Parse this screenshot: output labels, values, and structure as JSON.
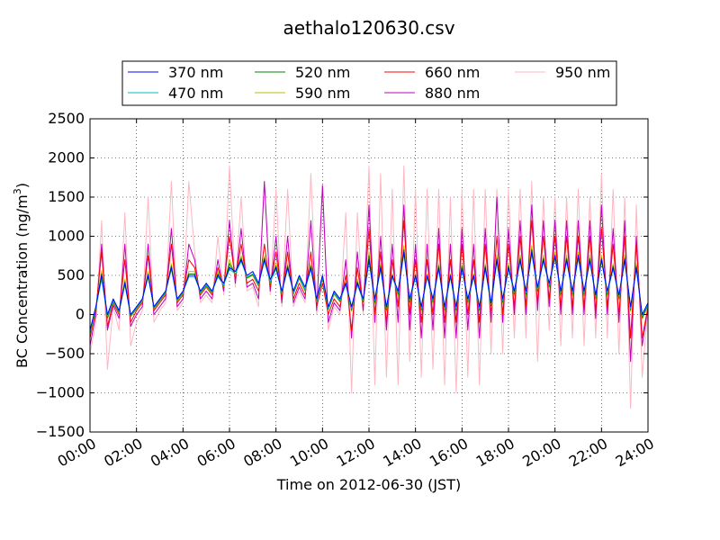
{
  "chart_data": {
    "type": "line",
    "title": "aethalo120630.csv",
    "xlabel": "Time on 2012-06-30 (JST)",
    "ylabel": "BC Concentration (ng/m",
    "ylabel_sup": "3",
    "ylabel_close": ")",
    "xlim": [
      0,
      24
    ],
    "ylim": [
      -1500,
      2500
    ],
    "x_ticks": [
      0,
      2,
      4,
      6,
      8,
      10,
      12,
      14,
      16,
      18,
      20,
      22,
      24
    ],
    "x_tick_labels": [
      "00:00",
      "02:00",
      "04:00",
      "06:00",
      "08:00",
      "10:00",
      "12:00",
      "14:00",
      "16:00",
      "18:00",
      "20:00",
      "22:00",
      "24:00"
    ],
    "y_ticks": [
      -1500,
      -1000,
      -500,
      0,
      500,
      1000,
      1500,
      2000,
      2500
    ],
    "y_tick_labels": [
      "−1500",
      "−1000",
      "−500",
      "0",
      "500",
      "1000",
      "1500",
      "2000",
      "2500"
    ],
    "grid": true,
    "legend_position": "top, outside plot area",
    "x": [
      0,
      0.25,
      0.5,
      0.75,
      1,
      1.25,
      1.5,
      1.75,
      2,
      2.25,
      2.5,
      2.75,
      3,
      3.25,
      3.5,
      3.75,
      4,
      4.25,
      4.5,
      4.75,
      5,
      5.25,
      5.5,
      5.75,
      6,
      6.25,
      6.5,
      6.75,
      7,
      7.25,
      7.5,
      7.75,
      8,
      8.25,
      8.5,
      8.75,
      9,
      9.25,
      9.5,
      9.75,
      10,
      10.25,
      10.5,
      10.75,
      11,
      11.25,
      11.5,
      11.75,
      12,
      12.25,
      12.5,
      12.75,
      13,
      13.25,
      13.5,
      13.75,
      14,
      14.25,
      14.5,
      14.75,
      15,
      15.25,
      15.5,
      15.75,
      16,
      16.25,
      16.5,
      16.75,
      17,
      17.25,
      17.5,
      17.75,
      18,
      18.25,
      18.5,
      18.75,
      19,
      19.25,
      19.5,
      19.75,
      20,
      20.25,
      20.5,
      20.75,
      21,
      21.25,
      21.5,
      21.75,
      22,
      22.25,
      22.5,
      22.75,
      23,
      23.25,
      23.5,
      23.75,
      24
    ],
    "series": [
      {
        "name": "370 nm",
        "color": "#0000ff",
        "values": [
          -200,
          100,
          500,
          0,
          200,
          50,
          400,
          0,
          100,
          200,
          500,
          100,
          200,
          300,
          600,
          200,
          300,
          500,
          500,
          300,
          400,
          300,
          500,
          400,
          600,
          550,
          700,
          500,
          550,
          400,
          700,
          450,
          600,
          300,
          600,
          300,
          500,
          350,
          600,
          200,
          500,
          100,
          300,
          200,
          400,
          100,
          400,
          200,
          700,
          200,
          600,
          100,
          500,
          300,
          800,
          200,
          500,
          100,
          500,
          200,
          600,
          100,
          500,
          100,
          600,
          200,
          500,
          100,
          600,
          150,
          700,
          200,
          600,
          300,
          700,
          300,
          800,
          350,
          700,
          400,
          750,
          300,
          700,
          300,
          750,
          300,
          700,
          250,
          700,
          300,
          600,
          250,
          700,
          100,
          600,
          0,
          150
        ]
      },
      {
        "name": "470 nm",
        "color": "#00bfbf",
        "values": [
          -220,
          90,
          450,
          -20,
          180,
          40,
          380,
          -10,
          90,
          190,
          480,
          90,
          190,
          290,
          580,
          190,
          290,
          480,
          480,
          290,
          380,
          290,
          480,
          380,
          580,
          520,
          680,
          480,
          520,
          380,
          680,
          420,
          580,
          280,
          580,
          280,
          480,
          320,
          580,
          180,
          480,
          80,
          280,
          180,
          380,
          80,
          380,
          180,
          680,
          180,
          580,
          80,
          480,
          280,
          780,
          180,
          480,
          80,
          480,
          180,
          580,
          80,
          480,
          80,
          580,
          180,
          480,
          80,
          580,
          130,
          680,
          180,
          580,
          280,
          680,
          280,
          780,
          320,
          680,
          380,
          720,
          280,
          680,
          280,
          720,
          280,
          680,
          230,
          680,
          280,
          580,
          230,
          680,
          80,
          580,
          -20,
          130
        ]
      },
      {
        "name": "520 nm",
        "color": "#008000",
        "values": [
          -240,
          80,
          520,
          -40,
          170,
          30,
          420,
          -20,
          80,
          180,
          520,
          80,
          180,
          280,
          620,
          180,
          280,
          520,
          520,
          280,
          370,
          280,
          520,
          370,
          650,
          510,
          720,
          470,
          510,
          370,
          720,
          410,
          620,
          270,
          620,
          270,
          470,
          310,
          620,
          170,
          470,
          70,
          270,
          170,
          400,
          60,
          420,
          160,
          750,
          160,
          620,
          60,
          500,
          260,
          830,
          160,
          500,
          60,
          500,
          160,
          620,
          60,
          500,
          60,
          620,
          160,
          500,
          60,
          620,
          110,
          720,
          160,
          620,
          260,
          720,
          260,
          830,
          300,
          720,
          360,
          760,
          260,
          720,
          260,
          760,
          260,
          720,
          210,
          720,
          260,
          620,
          210,
          720,
          60,
          620,
          -40,
          120
        ]
      },
      {
        "name": "590 nm",
        "color": "#bfbf00",
        "values": [
          -260,
          70,
          560,
          -60,
          160,
          20,
          450,
          -30,
          70,
          170,
          550,
          70,
          170,
          270,
          650,
          170,
          270,
          550,
          550,
          270,
          360,
          270,
          550,
          360,
          700,
          500,
          750,
          460,
          500,
          360,
          750,
          400,
          650,
          260,
          650,
          260,
          460,
          300,
          650,
          160,
          460,
          60,
          260,
          160,
          420,
          40,
          450,
          140,
          800,
          140,
          650,
          40,
          520,
          240,
          880,
          140,
          520,
          40,
          520,
          140,
          650,
          40,
          520,
          40,
          650,
          140,
          520,
          40,
          650,
          90,
          760,
          140,
          650,
          240,
          760,
          240,
          880,
          280,
          760,
          340,
          800,
          240,
          760,
          240,
          800,
          240,
          760,
          190,
          760,
          240,
          650,
          190,
          760,
          40,
          650,
          -60,
          110
        ]
      },
      {
        "name": "660 nm",
        "color": "#ff0000",
        "values": [
          -300,
          50,
          800,
          -150,
          150,
          0,
          700,
          -100,
          50,
          150,
          750,
          50,
          150,
          250,
          900,
          150,
          250,
          700,
          600,
          250,
          350,
          250,
          600,
          350,
          1000,
          450,
          900,
          400,
          450,
          300,
          900,
          350,
          800,
          200,
          800,
          200,
          400,
          250,
          800,
          100,
          400,
          0,
          200,
          100,
          500,
          -200,
          600,
          100,
          1100,
          0,
          800,
          -100,
          700,
          100,
          1200,
          0,
          700,
          -100,
          700,
          0,
          900,
          -100,
          700,
          -100,
          900,
          0,
          700,
          -100,
          900,
          0,
          1000,
          0,
          900,
          100,
          1000,
          100,
          1200,
          150,
          1000,
          200,
          1000,
          100,
          1000,
          100,
          1000,
          100,
          1000,
          50,
          1100,
          100,
          900,
          0,
          1000,
          -300,
          900,
          -300,
          100
        ]
      },
      {
        "name": "880 nm",
        "color": "#bf00bf",
        "values": [
          -400,
          0,
          900,
          -200,
          120,
          -50,
          900,
          -150,
          0,
          100,
          900,
          0,
          100,
          200,
          1100,
          100,
          200,
          900,
          700,
          200,
          300,
          200,
          700,
          300,
          1200,
          400,
          1100,
          350,
          400,
          200,
          1700,
          300,
          1000,
          150,
          1000,
          150,
          350,
          200,
          1200,
          50,
          1650,
          -100,
          150,
          50,
          700,
          -300,
          800,
          50,
          1400,
          -100,
          1000,
          -200,
          900,
          -100,
          1400,
          -200,
          900,
          -300,
          900,
          -200,
          1100,
          -300,
          900,
          -300,
          1100,
          -200,
          900,
          -300,
          1100,
          -100,
          1500,
          -100,
          1100,
          0,
          1200,
          0,
          1400,
          50,
          1200,
          100,
          1200,
          0,
          1200,
          0,
          1200,
          0,
          1200,
          -50,
          1400,
          0,
          1100,
          -100,
          1200,
          -600,
          1000,
          -400,
          100
        ]
      },
      {
        "name": "950 nm",
        "color": "#ffb6c1",
        "values": [
          -500,
          -100,
          1200,
          -700,
          100,
          -200,
          1300,
          -400,
          -100,
          50,
          1500,
          -100,
          50,
          150,
          1700,
          50,
          150,
          1700,
          800,
          150,
          250,
          150,
          1000,
          250,
          1900,
          350,
          1500,
          300,
          350,
          100,
          1700,
          250,
          1600,
          100,
          1600,
          100,
          300,
          150,
          1800,
          0,
          1600,
          -200,
          100,
          0,
          1300,
          -1000,
          1300,
          0,
          1900,
          -900,
          1800,
          -800,
          1600,
          -900,
          1900,
          -600,
          1600,
          -800,
          1600,
          -700,
          1600,
          -900,
          1500,
          -1000,
          1600,
          -800,
          1600,
          -900,
          1600,
          -500,
          1600,
          -500,
          1600,
          -300,
          1600,
          -300,
          1700,
          -600,
          1500,
          -200,
          1500,
          -400,
          1500,
          -300,
          1600,
          -400,
          1500,
          -300,
          1800,
          -300,
          1600,
          -500,
          1500,
          -1200,
          1400,
          -800,
          100
        ]
      }
    ]
  }
}
